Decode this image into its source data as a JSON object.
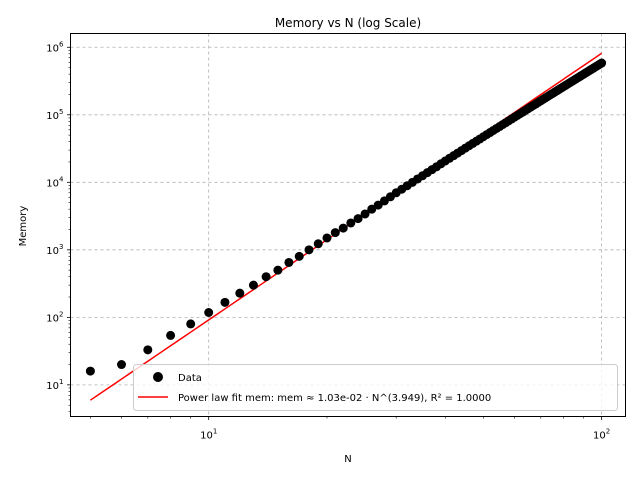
{
  "chart_data": {
    "type": "scatter",
    "title": "Memory vs N (log Scale)",
    "xlabel": "N",
    "ylabel": "Memory",
    "xscale": "log",
    "yscale": "log",
    "xlim": [
      4.45,
      115
    ],
    "ylim": [
      3.4,
      1600000.0
    ],
    "grid": true,
    "legend_position": "bottom-right",
    "x_ticks": [
      {
        "value": 10,
        "base": "10",
        "exp": "1"
      },
      {
        "value": 100,
        "base": "10",
        "exp": "2"
      }
    ],
    "y_ticks": [
      {
        "value": 10,
        "base": "10",
        "exp": "1"
      },
      {
        "value": 100,
        "base": "10",
        "exp": "2"
      },
      {
        "value": 1000,
        "base": "10",
        "exp": "3"
      },
      {
        "value": 10000,
        "base": "10",
        "exp": "4"
      },
      {
        "value": 100000,
        "base": "10",
        "exp": "5"
      },
      {
        "value": 1000000,
        "base": "10",
        "exp": "6"
      }
    ],
    "series": [
      {
        "name": "Data",
        "kind": "scatter",
        "color": "#000000",
        "x": [
          5,
          6,
          7,
          8,
          9,
          10,
          11,
          12,
          13,
          14,
          15,
          16,
          17,
          18,
          19,
          20,
          21,
          22,
          23,
          24,
          25,
          26,
          27,
          28,
          29,
          30,
          31,
          32,
          33,
          34,
          35,
          36,
          37,
          38,
          39,
          40,
          41,
          42,
          43,
          44,
          45,
          46,
          47,
          48,
          49,
          50,
          51,
          52,
          53,
          54,
          55,
          56,
          57,
          58,
          59,
          60,
          61,
          62,
          63,
          64,
          65,
          66,
          67,
          68,
          69,
          70,
          71,
          72,
          73,
          74,
          75,
          76,
          77,
          78,
          79,
          80,
          81,
          82,
          83,
          84,
          85,
          86,
          87,
          88,
          89,
          90,
          91,
          92,
          93,
          94,
          95,
          96,
          97,
          98,
          99,
          100
        ],
        "y": [
          16,
          20,
          33,
          54,
          80,
          118,
          167,
          228,
          300,
          400,
          500,
          650,
          800,
          1000,
          1230,
          1500,
          1800,
          2100,
          2500,
          2900,
          3400,
          4000,
          4600,
          5300,
          6100,
          7000,
          7900,
          8900,
          10000,
          11200,
          12500,
          13900,
          15400,
          17000,
          18800,
          20700,
          22700,
          24800,
          27100,
          29500,
          32100,
          34800,
          37700,
          40700,
          43900,
          47300,
          50900,
          54600,
          58600,
          62700,
          67000,
          71600,
          76400,
          81400,
          86600,
          92100,
          97800,
          103700,
          109900,
          116400,
          123200,
          130200,
          137500,
          145100,
          153000,
          161200,
          169700,
          178600,
          187800,
          197300,
          207100,
          217300,
          227800,
          238700,
          249900,
          261500,
          273500,
          285900,
          298700,
          311900,
          325500,
          339500,
          354000,
          368900,
          384200,
          400000,
          416300,
          433000,
          450200,
          467800,
          485900,
          504500,
          523600,
          543200,
          563300,
          584000
        ]
      },
      {
        "name": "Power law fit mem: mem ≈ 1.03e-02 · N^(3.949), R² = 1.0000",
        "kind": "line",
        "color": "#ff0000",
        "a": 0.0103,
        "b": 3.949,
        "x_range": [
          5,
          100
        ]
      }
    ]
  }
}
